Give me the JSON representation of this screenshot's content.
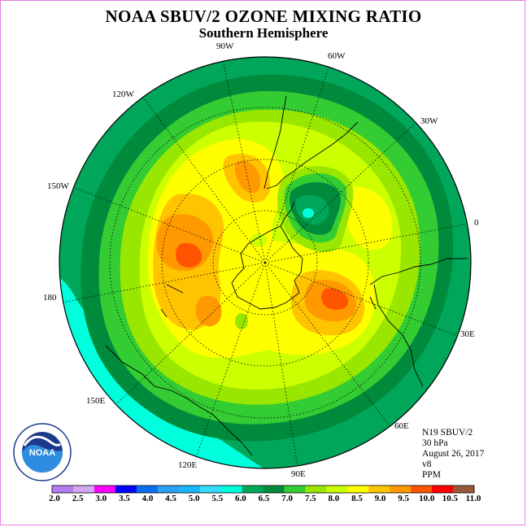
{
  "title": "NOAA SBUV/2 OZONE MIXING RATIO",
  "subtitle": "Southern Hemisphere",
  "longitude_labels": {
    "lon_90w": "90W",
    "lon_60w": "60W",
    "lon_120w": "120W",
    "lon_30w": "30W",
    "lon_150w": "150W",
    "lon_0": "0",
    "lon_180": "180",
    "lon_30e": "30E",
    "lon_150e": "150E",
    "lon_60e": "60E",
    "lon_120e": "120E",
    "lon_90e": "90E"
  },
  "info": {
    "satellite": "N19 SBUV/2",
    "level": "30 hPa",
    "date": "August 26, 2017",
    "version": "v8",
    "units": "PPM"
  },
  "logo": {
    "text": "NOAA",
    "ring_text": "NATIONAL OCEANIC AND ATMOSPHERIC ADMINISTRATION · U.S. DEPARTMENT OF COMMERCE"
  },
  "colorbar": {
    "labels": [
      "2.0",
      "2.5",
      "3.0",
      "3.5",
      "4.0",
      "4.5",
      "5.0",
      "5.5",
      "6.0",
      "6.5",
      "7.0",
      "7.5",
      "8.0",
      "8.5",
      "9.0",
      "9.5",
      "10.0",
      "10.5",
      "11.0"
    ],
    "colors": [
      "#b37ff0",
      "#d2a8f2",
      "#ff00ff",
      "#0000ff",
      "#0a6cf0",
      "#2b9ef5",
      "#1ab4ff",
      "#33ddff",
      "#00ffdd",
      "#00a65a",
      "#008a3c",
      "#33cc33",
      "#99e600",
      "#ccff00",
      "#ffff00",
      "#ffc400",
      "#ff9900",
      "#ff5500",
      "#ff0000",
      "#9a5a3a"
    ]
  },
  "map_colors": {
    "ppm_6_0_6_5": "#00ffdd",
    "ppm_6_5_7_0": "#00a65a",
    "ppm_7_0_7_5": "#008a3c",
    "ppm_7_5_8_0": "#33cc33",
    "ppm_8_0_8_5": "#99e600",
    "ppm_8_5_9_0": "#ccff00",
    "ppm_9_0_9_5": "#ffff00",
    "ppm_9_5_10_0": "#ffc400",
    "ppm_10_0_10_5": "#ff9900",
    "ppm_10_5_11_0": "#ff5500"
  }
}
